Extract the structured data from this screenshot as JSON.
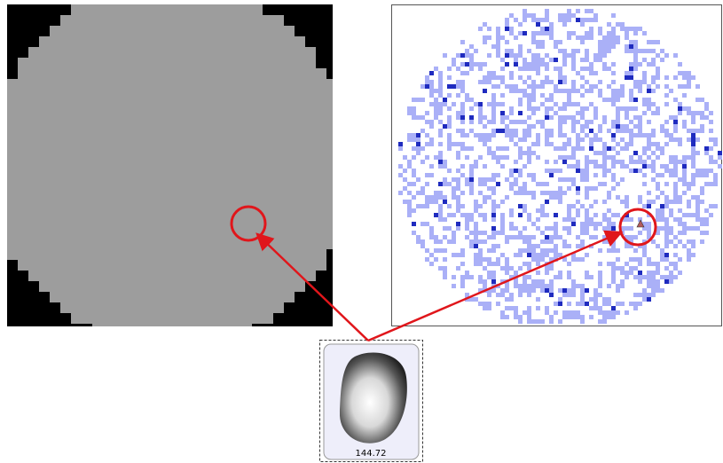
{
  "thumbnail": {
    "label": "144.72"
  }
}
